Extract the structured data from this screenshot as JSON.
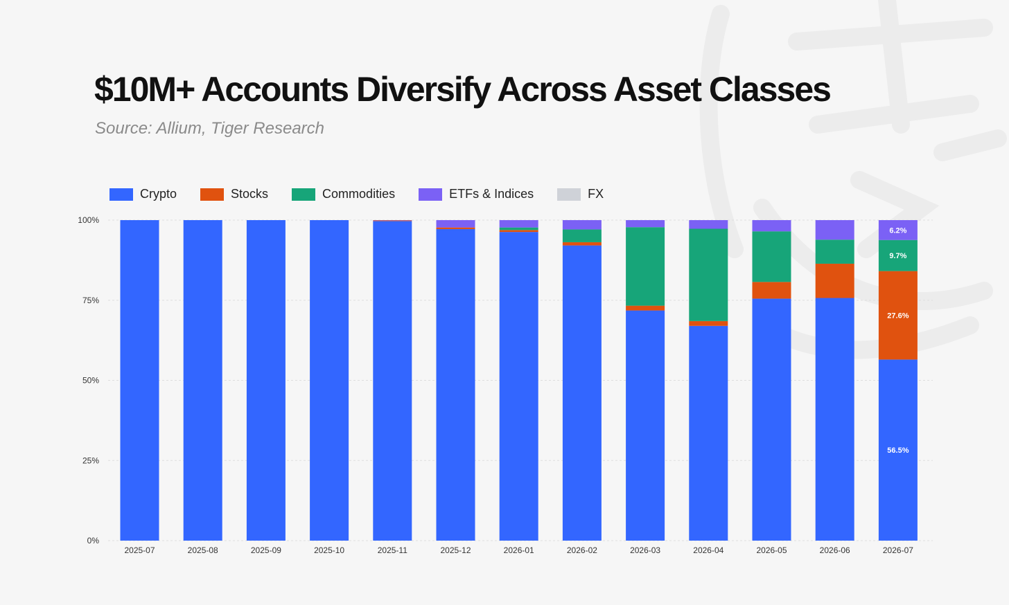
{
  "title": "$10M+ Accounts Diversify Across Asset Classes",
  "subtitle": "Source: Allium, Tiger Research",
  "colors": {
    "Crypto": "#3366ff",
    "Stocks": "#e0520f",
    "Commodities": "#17a579",
    "ETFs & Indices": "#7b61f5",
    "FX": "#cfd2d8"
  },
  "legend": [
    "Crypto",
    "Stocks",
    "Commodities",
    "ETFs & Indices",
    "FX"
  ],
  "chart_data": {
    "type": "bar",
    "stacked": true,
    "title": "$10M+ Accounts Diversify Across Asset Classes",
    "subtitle": "Source: Allium, Tiger Research",
    "xlabel": "",
    "ylabel": "",
    "ylim": [
      0,
      100
    ],
    "yticks": [
      "0%",
      "25%",
      "50%",
      "75%",
      "100%"
    ],
    "grid": true,
    "legend_position": "top-left",
    "categories": [
      "2025-07",
      "2025-08",
      "2025-09",
      "2025-10",
      "2025-11",
      "2025-12",
      "2026-01",
      "2026-02",
      "2026-03",
      "2026-04",
      "2026-05",
      "2026-06",
      "2026-07"
    ],
    "series": [
      {
        "name": "Crypto",
        "values": [
          100,
          100,
          100,
          100,
          99.7,
          97.2,
          96.3,
          92.1,
          71.8,
          67.0,
          75.5,
          75.7,
          56.5
        ]
      },
      {
        "name": "Stocks",
        "values": [
          0,
          0,
          0,
          0,
          0.2,
          0.5,
          0.6,
          1.0,
          1.5,
          1.5,
          5.2,
          10.7,
          27.6
        ]
      },
      {
        "name": "Commodities",
        "values": [
          0,
          0,
          0,
          0,
          0,
          0,
          0.8,
          4.0,
          24.5,
          28.8,
          15.8,
          7.5,
          9.7
        ]
      },
      {
        "name": "ETFs & Indices",
        "values": [
          0,
          0,
          0,
          0,
          0.1,
          2.3,
          2.3,
          2.9,
          2.2,
          2.7,
          3.5,
          6.1,
          6.2
        ]
      },
      {
        "name": "FX",
        "values": [
          0,
          0,
          0,
          0,
          0,
          0,
          0,
          0,
          0,
          0,
          0,
          0,
          0
        ]
      }
    ],
    "data_labels": [
      {
        "category": "2026-07",
        "series": "ETFs & Indices",
        "text": "6.2%"
      },
      {
        "category": "2026-07",
        "series": "Commodities",
        "text": "9.7%"
      },
      {
        "category": "2026-07",
        "series": "Stocks",
        "text": "27.6%"
      },
      {
        "category": "2026-07",
        "series": "Crypto",
        "text": "56.5%"
      }
    ]
  }
}
